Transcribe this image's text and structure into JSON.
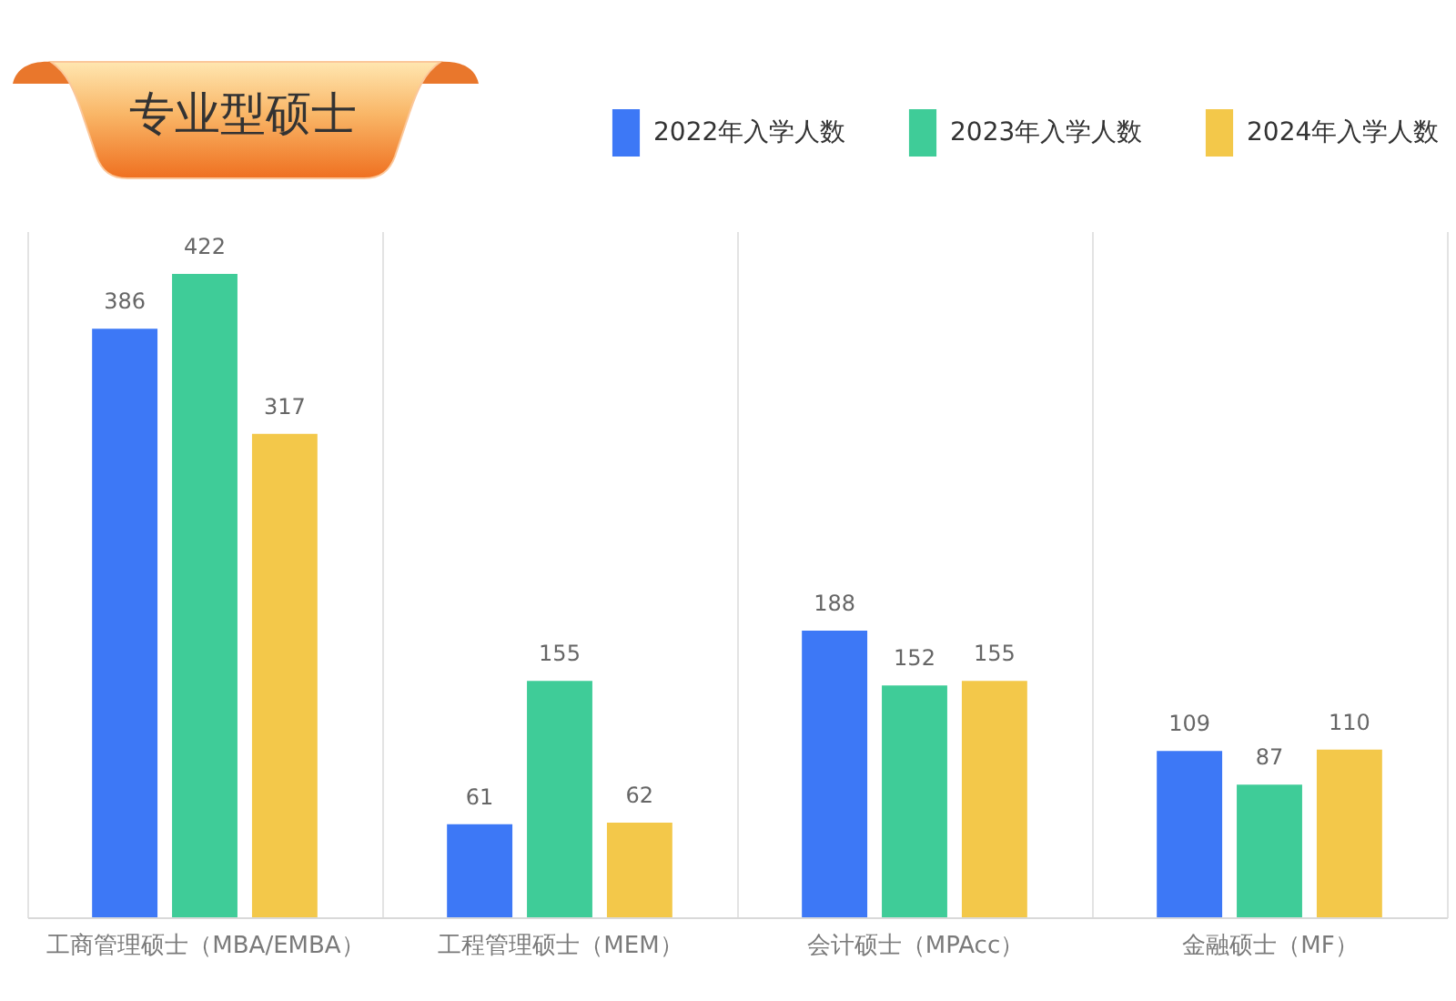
{
  "chart_data": {
    "type": "bar",
    "title": "专业型硕士",
    "categories": [
      "工商管理硕士（MBA/EMBA）",
      "工程管理硕士（MEM）",
      "会计硕士（MPAcc）",
      "金融硕士（MF）"
    ],
    "series": [
      {
        "name": "2022年入学人数",
        "color": "#3d78f6",
        "values": [
          386,
          61,
          188,
          109
        ]
      },
      {
        "name": "2023年入学人数",
        "color": "#3fcc98",
        "values": [
          422,
          155,
          152,
          87
        ]
      },
      {
        "name": "2024年入学人数",
        "color": "#f3c84a",
        "values": [
          317,
          62,
          155,
          110
        ]
      }
    ],
    "data_labels": true,
    "grid": "x",
    "legend": "top right"
  }
}
